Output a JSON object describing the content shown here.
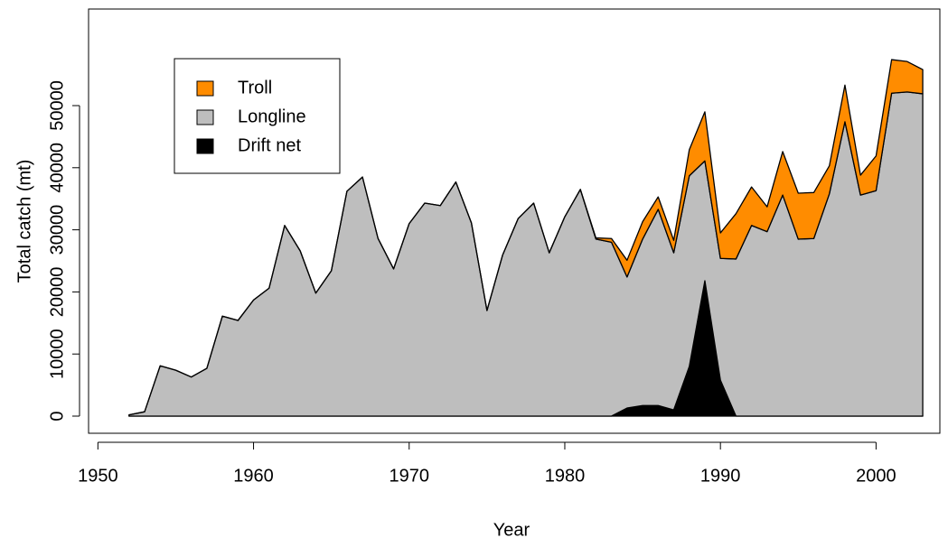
{
  "chart_data": {
    "type": "stacked-area",
    "x_label": "Year",
    "y_label": "Total catch (mt)",
    "x": [
      1952,
      1953,
      1954,
      1955,
      1956,
      1957,
      1958,
      1959,
      1960,
      1961,
      1962,
      1963,
      1964,
      1965,
      1966,
      1967,
      1968,
      1969,
      1970,
      1971,
      1972,
      1973,
      1974,
      1975,
      1976,
      1977,
      1978,
      1979,
      1980,
      1981,
      1982,
      1983,
      1984,
      1985,
      1986,
      1987,
      1988,
      1989,
      1990,
      1991,
      1992,
      1993,
      1994,
      1995,
      1996,
      1997,
      1998,
      1999,
      2000,
      2001,
      2002,
      2003
    ],
    "series": [
      {
        "name": "Troll",
        "color": "#ff8c00",
        "values": [
          0,
          0,
          0,
          0,
          0,
          0,
          0,
          0,
          0,
          0,
          0,
          0,
          0,
          0,
          0,
          0,
          0,
          0,
          0,
          0,
          0,
          0,
          0,
          0,
          0,
          0,
          0,
          0,
          0,
          0,
          200,
          600,
          2700,
          2800,
          2000,
          2000,
          4200,
          7900,
          4100,
          7300,
          6200,
          4000,
          7000,
          7400,
          7400,
          4500,
          5900,
          3200,
          5600,
          5400,
          4900,
          3900
        ]
      },
      {
        "name": "Longline",
        "color": "#bebebe",
        "values": [
          200,
          700,
          8100,
          7400,
          6300,
          7700,
          16100,
          15400,
          18700,
          20600,
          30700,
          26600,
          19800,
          23400,
          36200,
          38500,
          28600,
          23700,
          31000,
          34300,
          33900,
          37700,
          31100,
          17000,
          25900,
          31800,
          34300,
          26300,
          32100,
          36500,
          28500,
          28000,
          21100,
          26800,
          31600,
          25300,
          30700,
          19300,
          19600,
          25300,
          30700,
          29700,
          35600,
          28500,
          28600,
          35800,
          47400,
          35600,
          36300,
          52000,
          52200,
          51900
        ]
      },
      {
        "name": "Drift net",
        "color": "#000000",
        "values": [
          0,
          0,
          0,
          0,
          0,
          0,
          0,
          0,
          0,
          0,
          0,
          0,
          0,
          0,
          0,
          0,
          0,
          0,
          0,
          0,
          0,
          0,
          0,
          0,
          0,
          0,
          0,
          0,
          0,
          0,
          0,
          0,
          1300,
          1700,
          1700,
          1000,
          8000,
          21800,
          5800,
          0,
          0,
          0,
          0,
          0,
          0,
          0,
          0,
          0,
          0,
          0,
          0,
          0
        ]
      }
    ],
    "xlim": [
      1949.4,
      2004.1
    ],
    "xticks": [
      1950,
      1960,
      1970,
      1980,
      1990,
      2000
    ],
    "ylim": [
      -2760,
      65550
    ],
    "yticks": [
      0,
      10000,
      20000,
      30000,
      40000,
      50000
    ],
    "grid": false,
    "legend": "top-left"
  }
}
